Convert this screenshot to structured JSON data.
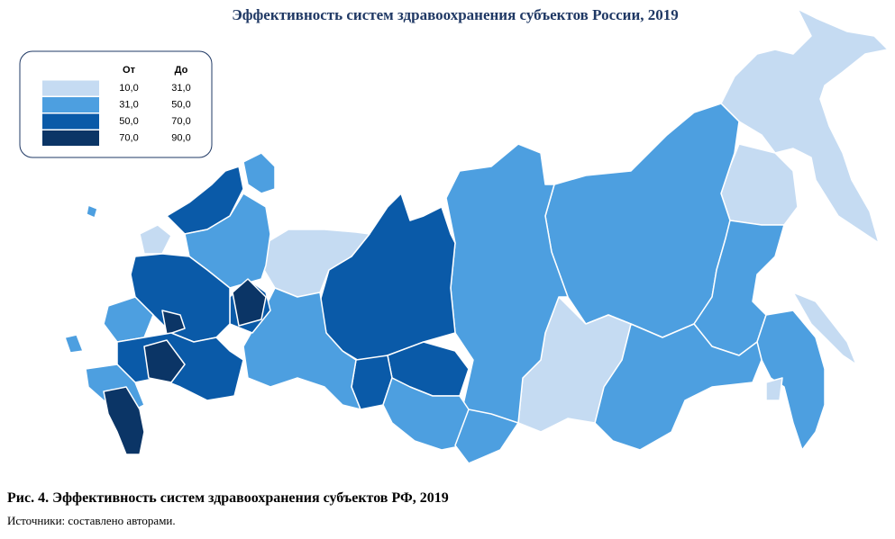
{
  "title": "Эффективность систем здравоохранения субъектов России, 2019",
  "legend": {
    "header_from": "От",
    "header_to": "До",
    "rows": [
      {
        "from": "10,0",
        "to": "31,0",
        "color": "#c5dbf2"
      },
      {
        "from": "31,0",
        "to": "50,0",
        "color": "#4d9fe0"
      },
      {
        "from": "50,0",
        "to": "70,0",
        "color": "#0a5aa8"
      },
      {
        "from": "70,0",
        "to": "90,0",
        "color": "#0b3566"
      }
    ]
  },
  "caption": "Рис. 4. Эффективность систем здравоохранения субъектов РФ, 2019",
  "source": "Источники: составлено авторами."
}
